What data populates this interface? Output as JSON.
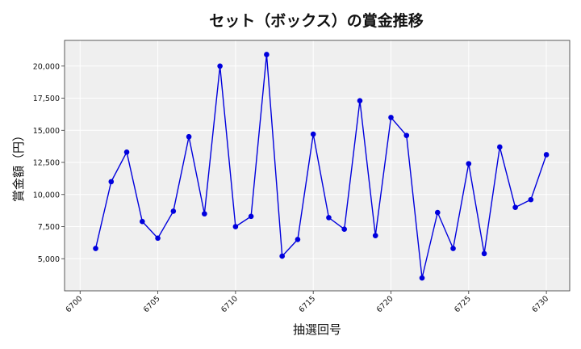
{
  "chart_data": {
    "type": "line",
    "title": "セット（ボックス）の賞金推移",
    "xlabel": "抽選回号",
    "ylabel": "賞金額（円）",
    "xlim": [
      6699,
      6731.5
    ],
    "ylim": [
      2500,
      22000
    ],
    "xticks": [
      6700,
      6705,
      6710,
      6715,
      6720,
      6725,
      6730
    ],
    "xtick_labels": [
      "6700",
      "6705",
      "6710",
      "6715",
      "6720",
      "6725",
      "6730"
    ],
    "yticks": [
      5000,
      7500,
      10000,
      12500,
      15000,
      17500,
      20000
    ],
    "ytick_labels": [
      "5,000",
      "7,500",
      "10,000",
      "12,500",
      "15,000",
      "17,500",
      "20,000"
    ],
    "grid": true,
    "color": "#0000dd",
    "x": [
      6701,
      6702,
      6703,
      6704,
      6705,
      6706,
      6707,
      6708,
      6709,
      6710,
      6711,
      6712,
      6713,
      6714,
      6715,
      6716,
      6717,
      6718,
      6719,
      6720,
      6721,
      6722,
      6723,
      6724,
      6725,
      6726,
      6727,
      6728,
      6729,
      6730
    ],
    "y": [
      5800,
      11000,
      13300,
      7900,
      6600,
      8700,
      14500,
      8500,
      20000,
      7500,
      8300,
      20900,
      5200,
      6500,
      14700,
      8200,
      7300,
      17300,
      6800,
      16000,
      14600,
      3500,
      8600,
      5800,
      12400,
      5400,
      13700,
      9000,
      9600,
      13100
    ]
  }
}
